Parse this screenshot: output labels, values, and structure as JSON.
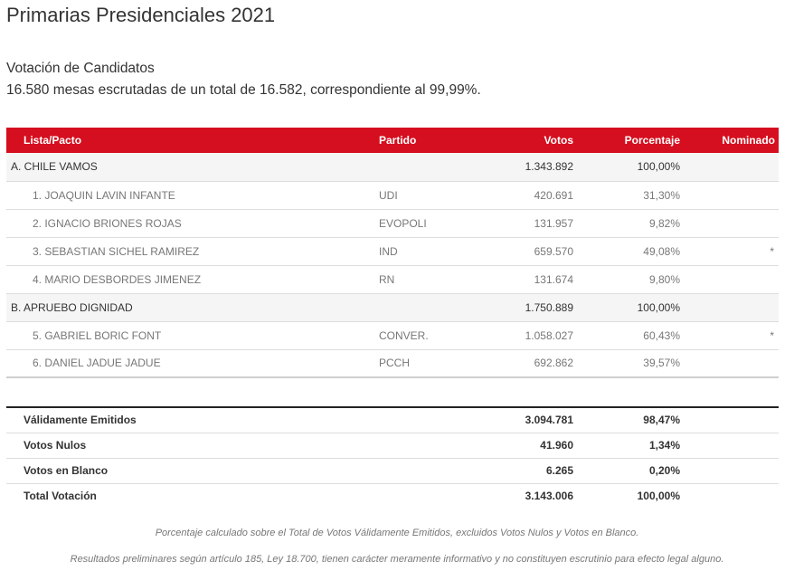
{
  "page": {
    "title": "Primarias Presidenciales 2021",
    "subtitle": "Votación de Candidatos",
    "mesas_text": "16.580 mesas escrutadas de un total de 16.582, correspondiente al 99,99%."
  },
  "table": {
    "headers": {
      "lista": "Lista/Pacto",
      "partido": "Partido",
      "votos": "Votos",
      "porcentaje": "Porcentaje",
      "nominado": "Nominado"
    },
    "pactos": [
      {
        "name": "A. CHILE VAMOS",
        "votos": "1.343.892",
        "porcentaje": "100,00%",
        "candidates": [
          {
            "name": "1. JOAQUIN LAVIN INFANTE",
            "partido": "UDI",
            "votos": "420.691",
            "porcentaje": "31,30%",
            "nominado": ""
          },
          {
            "name": "2. IGNACIO BRIONES ROJAS",
            "partido": "EVOPOLI",
            "votos": "131.957",
            "porcentaje": "9,82%",
            "nominado": ""
          },
          {
            "name": "3. SEBASTIAN SICHEL RAMIREZ",
            "partido": "IND",
            "votos": "659.570",
            "porcentaje": "49,08%",
            "nominado": "*"
          },
          {
            "name": "4. MARIO DESBORDES JIMENEZ",
            "partido": "RN",
            "votos": "131.674",
            "porcentaje": "9,80%",
            "nominado": ""
          }
        ]
      },
      {
        "name": "B. APRUEBO DIGNIDAD",
        "votos": "1.750.889",
        "porcentaje": "100,00%",
        "candidates": [
          {
            "name": "5. GABRIEL BORIC FONT",
            "partido": "CONVER.",
            "votos": "1.058.027",
            "porcentaje": "60,43%",
            "nominado": "*"
          },
          {
            "name": "6. DANIEL JADUE JADUE",
            "partido": "PCCH",
            "votos": "692.862",
            "porcentaje": "39,57%",
            "nominado": ""
          }
        ]
      }
    ]
  },
  "totals": [
    {
      "label": "Válidamente Emitidos",
      "votos": "3.094.781",
      "porcentaje": "98,47%"
    },
    {
      "label": "Votos Nulos",
      "votos": "41.960",
      "porcentaje": "1,34%"
    },
    {
      "label": "Votos en Blanco",
      "votos": "6.265",
      "porcentaje": "0,20%"
    },
    {
      "label": "Total Votación",
      "votos": "3.143.006",
      "porcentaje": "100,00%"
    }
  ],
  "notes": {
    "porcentaje_note": "Porcentaje calculado sobre el Total de Votos Válidamente Emitidos, excluidos Votos Nulos y Votos en Blanco.",
    "legal_note": "Resultados preliminares según artículo 185, Ley 18.700, tienen carácter meramente informativo y no constituyen escrutinio para efecto legal alguno."
  },
  "colors": {
    "header_red": "#d50f1f",
    "text": "#333333",
    "muted": "#777777"
  }
}
